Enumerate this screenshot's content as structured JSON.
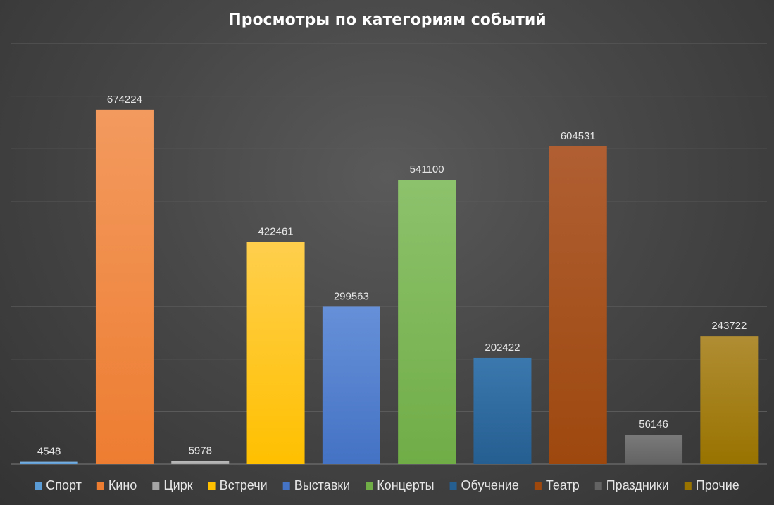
{
  "chart_data": {
    "type": "bar",
    "title": "Просмотры по категориям событий",
    "xlabel": "",
    "ylabel": "",
    "ylim": [
      0,
      800000
    ],
    "grid": true,
    "legend_position": "bottom",
    "categories": [
      "Спорт",
      "Кино",
      "Цирк",
      "Встречи",
      "Выставки",
      "Концерты",
      "Обучение",
      "Театр",
      "Праздники",
      "Прочие"
    ],
    "values": [
      4548,
      674224,
      5978,
      422461,
      299563,
      541100,
      202422,
      604531,
      56146,
      243722
    ],
    "colors": [
      "#5b9bd5",
      "#ed7d31",
      "#a5a5a5",
      "#ffc000",
      "#4472c4",
      "#70ad47",
      "#255e91",
      "#9e480e",
      "#636363",
      "#997300"
    ],
    "colors_light": [
      "#7fb3e3",
      "#f39a5f",
      "#bdbdbd",
      "#ffcf4d",
      "#6690d8",
      "#8dc26c",
      "#3b78ad",
      "#b05f33",
      "#7a7a7a",
      "#b08d33"
    ]
  }
}
